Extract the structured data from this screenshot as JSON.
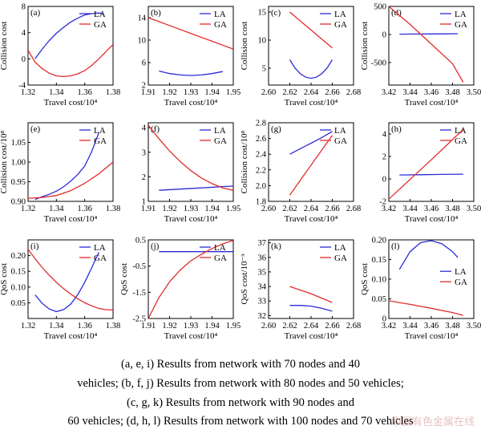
{
  "colors": {
    "LA": "#2b2bd9",
    "GA": "#e32b2b",
    "axis": "#000000"
  },
  "legend_labels": {
    "LA": "LA",
    "GA": "GA"
  },
  "caption": {
    "line1": "(a, e, i) Results from network with 70 nodes and 40",
    "line2": "vehicles; (b, f, j) Results from network with 80 nodes and 50 vehicles;",
    "line3": "(c, g, k) Results from network with 90 nodes and",
    "line4": "60 vehicles; (d, h, l) Results from network with 100 nodes and 70 vehicles"
  },
  "watermark": "中国有色金属在线",
  "chart_data": [
    {
      "panel": "(a)",
      "type": "line",
      "xlabel": "Travel cost/10⁴",
      "ylabel": "Collision cost",
      "xlim": [
        1.32,
        1.38
      ],
      "ylim": [
        -4,
        8
      ],
      "xticks": [
        1.32,
        1.34,
        1.36,
        1.38
      ],
      "xtick_labels": [
        "1.32",
        "1.34",
        "1.36",
        "1.38"
      ],
      "yticks": [
        -4,
        0,
        4,
        8
      ],
      "ytick_labels": [
        "-4",
        "0",
        "4",
        "8"
      ],
      "legend": "top-right",
      "series": [
        {
          "name": "LA",
          "x": [
            1.325,
            1.33,
            1.335,
            1.34,
            1.345,
            1.35,
            1.355,
            1.36,
            1.365,
            1.37,
            1.373
          ],
          "y": [
            0.0,
            1.5,
            2.8,
            3.9,
            4.8,
            5.6,
            6.2,
            6.7,
            6.9,
            7.0,
            6.9
          ]
        },
        {
          "name": "GA",
          "x": [
            1.32,
            1.325,
            1.33,
            1.335,
            1.34,
            1.345,
            1.35,
            1.355,
            1.36,
            1.365,
            1.37,
            1.375,
            1.38
          ],
          "y": [
            1.3,
            -0.5,
            -1.5,
            -2.2,
            -2.6,
            -2.7,
            -2.6,
            -2.3,
            -1.8,
            -1.0,
            0.0,
            1.1,
            2.2
          ]
        }
      ]
    },
    {
      "panel": "(b)",
      "type": "line",
      "xlabel": "Travel cost/10⁴",
      "ylabel": "",
      "xlim": [
        1.91,
        1.95
      ],
      "ylim": [
        2,
        16
      ],
      "xticks": [
        1.91,
        1.92,
        1.93,
        1.94,
        1.95
      ],
      "xtick_labels": [
        "1.91",
        "1.92",
        "1.93",
        "1.94",
        "1.95"
      ],
      "yticks": [
        2,
        6,
        10,
        14
      ],
      "ytick_labels": [
        "2",
        "6",
        "10",
        "14"
      ],
      "legend": "top-right",
      "series": [
        {
          "name": "LA",
          "x": [
            1.915,
            1.92,
            1.925,
            1.93,
            1.935,
            1.94,
            1.945
          ],
          "y": [
            4.5,
            4.05,
            3.8,
            3.7,
            3.8,
            4.05,
            4.4
          ]
        },
        {
          "name": "GA",
          "x": [
            1.91,
            1.92,
            1.93,
            1.94,
            1.95
          ],
          "y": [
            14.0,
            12.6,
            11.2,
            9.8,
            8.4
          ]
        }
      ]
    },
    {
      "panel": "(c)",
      "type": "line",
      "xlabel": "Travel cost/10⁴",
      "ylabel": "Collision cost",
      "xlim": [
        2.6,
        2.68
      ],
      "ylim": [
        2,
        16
      ],
      "xticks": [
        2.6,
        2.62,
        2.64,
        2.66,
        2.68
      ],
      "xtick_labels": [
        "2.60",
        "2.62",
        "2.64",
        "2.66",
        "2.68"
      ],
      "yticks": [
        5,
        10,
        15
      ],
      "ytick_labels": [
        "5",
        "10",
        "15"
      ],
      "legend": "top-right",
      "series": [
        {
          "name": "LA",
          "x": [
            2.62,
            2.625,
            2.63,
            2.635,
            2.64,
            2.645,
            2.65,
            2.655,
            2.66
          ],
          "y": [
            6.5,
            5.0,
            4.0,
            3.4,
            3.2,
            3.4,
            4.0,
            5.0,
            6.5
          ]
        },
        {
          "name": "GA",
          "x": [
            2.62,
            2.63,
            2.64,
            2.65,
            2.66
          ],
          "y": [
            15.0,
            13.4,
            11.8,
            10.2,
            8.6
          ]
        }
      ]
    },
    {
      "panel": "(d)",
      "type": "line",
      "xlabel": "Travel cost/10⁴",
      "ylabel": "Collision cost",
      "xlim": [
        3.42,
        3.5
      ],
      "ylim": [
        -900,
        500
      ],
      "xticks": [
        3.42,
        3.44,
        3.46,
        3.48,
        3.5
      ],
      "xtick_labels": [
        "3.42",
        "3.44",
        "3.46",
        "3.48",
        "3.50"
      ],
      "yticks": [
        -500,
        0,
        500
      ],
      "ytick_labels": [
        "-500",
        "0",
        "500"
      ],
      "legend": "top-right",
      "series": [
        {
          "name": "LA",
          "x": [
            3.43,
            3.445,
            3.46,
            3.475,
            3.485
          ],
          "y": [
            5,
            8,
            10,
            12,
            15
          ]
        },
        {
          "name": "GA",
          "x": [
            3.42,
            3.44,
            3.46,
            3.48,
            3.49
          ],
          "y": [
            500,
            180,
            -170,
            -520,
            -850
          ]
        }
      ]
    },
    {
      "panel": "(e)",
      "type": "line",
      "xlabel": "Travel cost/10⁴",
      "ylabel": "Collision cost/10⁸",
      "xlim": [
        1.32,
        1.38
      ],
      "ylim": [
        0.9,
        1.1
      ],
      "xticks": [
        1.32,
        1.34,
        1.36,
        1.38
      ],
      "xtick_labels": [
        "1.32",
        "1.34",
        "1.36",
        "1.38"
      ],
      "yticks": [
        0.9,
        0.95,
        1.0,
        1.05
      ],
      "ytick_labels": [
        "0.90",
        "0.95",
        "1.00",
        "1.05"
      ],
      "legend": "top-right",
      "series": [
        {
          "name": "LA",
          "x": [
            1.325,
            1.33,
            1.335,
            1.34,
            1.345,
            1.35,
            1.355,
            1.36,
            1.365,
            1.37
          ],
          "y": [
            0.905,
            0.912,
            0.918,
            0.926,
            0.937,
            0.951,
            0.968,
            0.99,
            1.027,
            1.075
          ]
        },
        {
          "name": "GA",
          "x": [
            1.32,
            1.33,
            1.34,
            1.35,
            1.36,
            1.37,
            1.38
          ],
          "y": [
            0.908,
            0.91,
            0.915,
            0.927,
            0.946,
            0.97,
            1.0
          ]
        }
      ]
    },
    {
      "panel": "(f)",
      "type": "line",
      "xlabel": "Travel cost/10⁴",
      "ylabel": "",
      "xlim": [
        1.91,
        1.95
      ],
      "ylim": [
        1,
        4.2
      ],
      "xticks": [
        1.91,
        1.92,
        1.93,
        1.94,
        1.95
      ],
      "xtick_labels": [
        "1.91",
        "1.92",
        "1.93",
        "1.94",
        "1.95"
      ],
      "yticks": [
        1,
        2,
        3,
        4
      ],
      "ytick_labels": [
        "1",
        "2",
        "3",
        "4"
      ],
      "legend": "top-right",
      "series": [
        {
          "name": "LA",
          "x": [
            1.915,
            1.925,
            1.935,
            1.945,
            1.95
          ],
          "y": [
            1.45,
            1.5,
            1.55,
            1.6,
            1.62
          ]
        },
        {
          "name": "GA",
          "x": [
            1.91,
            1.915,
            1.92,
            1.925,
            1.93,
            1.935,
            1.94,
            1.945,
            1.95
          ],
          "y": [
            4.1,
            3.55,
            3.05,
            2.62,
            2.25,
            1.95,
            1.72,
            1.55,
            1.45
          ]
        }
      ]
    },
    {
      "panel": "(g)",
      "type": "line",
      "xlabel": "Travel cost/10⁴",
      "ylabel": "Collision cost/10⁸",
      "xlim": [
        2.6,
        2.68
      ],
      "ylim": [
        1.8,
        2.8
      ],
      "xticks": [
        2.6,
        2.62,
        2.64,
        2.66,
        2.68
      ],
      "xtick_labels": [
        "2.60",
        "2.62",
        "2.64",
        "2.66",
        "2.68"
      ],
      "yticks": [
        1.8,
        2.0,
        2.2,
        2.4,
        2.6,
        2.8
      ],
      "ytick_labels": [
        "1.8",
        "2.0",
        "2.2",
        "2.4",
        "2.6",
        "2.8"
      ],
      "legend": "top-right",
      "series": [
        {
          "name": "LA",
          "x": [
            2.62,
            2.63,
            2.64,
            2.65,
            2.66
          ],
          "y": [
            2.4,
            2.47,
            2.54,
            2.61,
            2.69
          ]
        },
        {
          "name": "GA",
          "x": [
            2.62,
            2.63,
            2.64,
            2.65,
            2.66
          ],
          "y": [
            1.88,
            2.07,
            2.26,
            2.45,
            2.64
          ]
        }
      ]
    },
    {
      "panel": "(h)",
      "type": "line",
      "xlabel": "Travel cost/10⁴",
      "ylabel": "",
      "xlim": [
        3.42,
        3.5
      ],
      "ylim": [
        -2,
        5
      ],
      "xticks": [
        3.42,
        3.44,
        3.46,
        3.48,
        3.5
      ],
      "xtick_labels": [
        "3.42",
        "3.44",
        "3.46",
        "3.48",
        "3.50"
      ],
      "yticks": [
        -2,
        0,
        2,
        4
      ],
      "ytick_labels": [
        "-2",
        "0",
        "2",
        "4"
      ],
      "legend": "top-right",
      "series": [
        {
          "name": "LA",
          "x": [
            3.43,
            3.45,
            3.47,
            3.49
          ],
          "y": [
            0.35,
            0.37,
            0.4,
            0.42
          ]
        },
        {
          "name": "GA",
          "x": [
            3.42,
            3.44,
            3.46,
            3.48,
            3.49
          ],
          "y": [
            -1.8,
            -0.05,
            1.7,
            3.5,
            4.4
          ]
        }
      ]
    },
    {
      "panel": "(i)",
      "type": "line",
      "xlabel": "Travel cost/10⁴",
      "ylabel": "QoS cost",
      "xlim": [
        1.32,
        1.38
      ],
      "ylim": [
        0,
        0.25
      ],
      "xticks": [
        1.32,
        1.34,
        1.36,
        1.38
      ],
      "xtick_labels": [
        "1.32",
        "1.34",
        "1.36",
        "1.38"
      ],
      "yticks": [
        0.05,
        0.1,
        0.15,
        0.2
      ],
      "ytick_labels": [
        "0.05",
        "0.10",
        "0.15",
        "0.20"
      ],
      "legend": "top-right",
      "series": [
        {
          "name": "LA",
          "x": [
            1.325,
            1.33,
            1.335,
            1.34,
            1.345,
            1.35,
            1.355,
            1.36,
            1.365,
            1.37
          ],
          "y": [
            0.075,
            0.048,
            0.03,
            0.022,
            0.028,
            0.045,
            0.075,
            0.115,
            0.162,
            0.21
          ]
        },
        {
          "name": "GA",
          "x": [
            1.32,
            1.325,
            1.33,
            1.335,
            1.34,
            1.345,
            1.35,
            1.355,
            1.36,
            1.365,
            1.37,
            1.375,
            1.38
          ],
          "y": [
            0.22,
            0.19,
            0.162,
            0.137,
            0.115,
            0.095,
            0.078,
            0.063,
            0.05,
            0.04,
            0.032,
            0.028,
            0.027
          ]
        }
      ]
    },
    {
      "panel": "(j)",
      "type": "line",
      "xlabel": "Travel cost/10⁴",
      "ylabel": "QoS cost",
      "xlim": [
        1.91,
        1.95
      ],
      "ylim": [
        -2.5,
        0.5
      ],
      "xticks": [
        1.91,
        1.92,
        1.93,
        1.94,
        1.95
      ],
      "xtick_labels": [
        "1.91",
        "1.92",
        "1.93",
        "1.94",
        "1.95"
      ],
      "yticks": [
        -2.5,
        -1.5,
        -0.5,
        0.5
      ],
      "ytick_labels": [
        "-2.5",
        "-1.5",
        "-0.5",
        "0.5"
      ],
      "legend": "top-right",
      "series": [
        {
          "name": "LA",
          "x": [
            1.915,
            1.925,
            1.935,
            1.945,
            1.95
          ],
          "y": [
            0.05,
            0.05,
            0.05,
            0.05,
            0.05
          ]
        },
        {
          "name": "GA",
          "x": [
            1.91,
            1.915,
            1.92,
            1.925,
            1.93,
            1.935,
            1.94,
            1.945,
            1.95
          ],
          "y": [
            -2.5,
            -1.7,
            -1.1,
            -0.65,
            -0.3,
            -0.05,
            0.17,
            0.35,
            0.48
          ]
        }
      ]
    },
    {
      "panel": "(k)",
      "type": "line",
      "xlabel": "Travel cost/10⁴",
      "ylabel": "QoS cost/10⁻³",
      "xlim": [
        2.6,
        2.68
      ],
      "ylim": [
        31.8,
        37.2
      ],
      "xticks": [
        2.6,
        2.62,
        2.64,
        2.66,
        2.68
      ],
      "xtick_labels": [
        "2.60",
        "2.62",
        "2.64",
        "2.66",
        "2.68"
      ],
      "yticks": [
        32,
        33,
        34,
        35,
        36,
        37
      ],
      "ytick_labels": [
        "32",
        "33",
        "34",
        "35",
        "36",
        "37"
      ],
      "legend": "top-right",
      "series": [
        {
          "name": "LA",
          "x": [
            2.62,
            2.63,
            2.64,
            2.65,
            2.66
          ],
          "y": [
            32.7,
            32.7,
            32.65,
            32.5,
            32.3
          ]
        },
        {
          "name": "GA",
          "x": [
            2.62,
            2.63,
            2.64,
            2.65,
            2.66
          ],
          "y": [
            34.0,
            33.75,
            33.5,
            33.2,
            32.9
          ]
        }
      ]
    },
    {
      "panel": "(l)",
      "type": "line",
      "xlabel": "Travel cost/10⁴",
      "ylabel": "QoS cost",
      "xlim": [
        3.42,
        3.5
      ],
      "ylim": [
        0,
        0.2
      ],
      "xticks": [
        3.42,
        3.44,
        3.46,
        3.48,
        3.5
      ],
      "xtick_labels": [
        "3.42",
        "3.44",
        "3.46",
        "3.48",
        "3.50"
      ],
      "yticks": [
        0,
        0.05,
        0.1,
        0.15,
        0.2
      ],
      "ytick_labels": [
        "0",
        "0.05",
        "0.10",
        "0.15",
        "0.20"
      ],
      "legend": "right",
      "series": [
        {
          "name": "LA",
          "x": [
            3.43,
            3.44,
            3.45,
            3.46,
            3.47,
            3.48,
            3.485
          ],
          "y": [
            0.125,
            0.17,
            0.193,
            0.198,
            0.19,
            0.17,
            0.155
          ]
        },
        {
          "name": "GA",
          "x": [
            3.42,
            3.44,
            3.46,
            3.48,
            3.49
          ],
          "y": [
            0.045,
            0.036,
            0.026,
            0.015,
            0.008
          ]
        }
      ]
    }
  ]
}
